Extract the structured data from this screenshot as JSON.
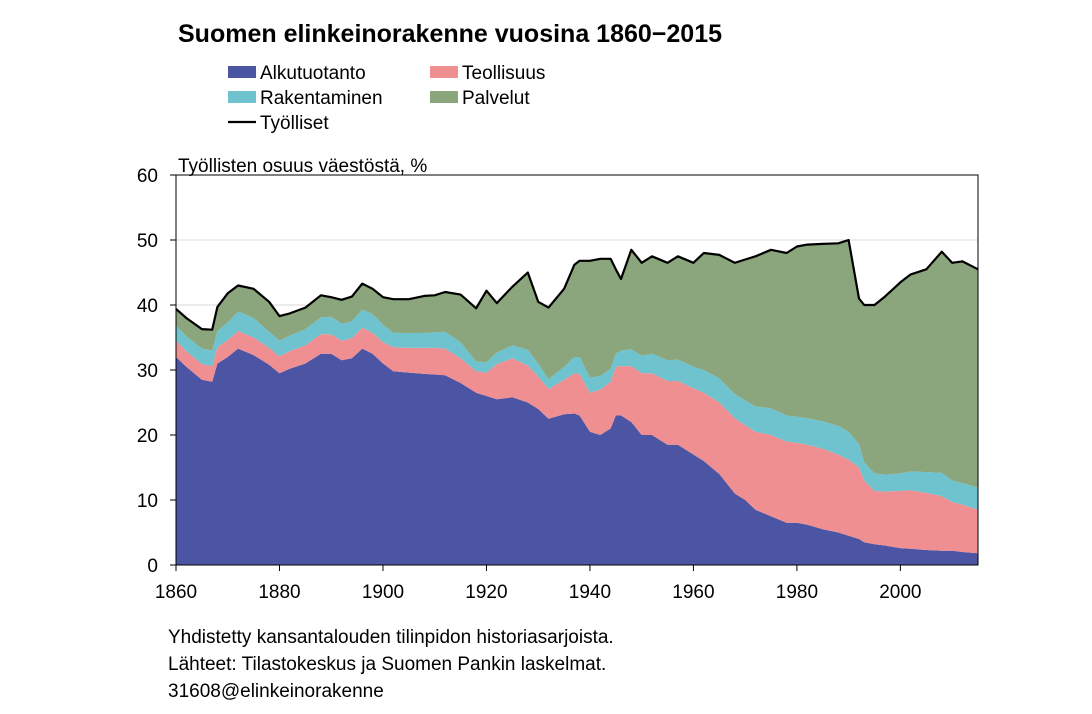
{
  "chart_data": {
    "type": "area",
    "title": "Suomen elinkeinorakenne vuosina 1860−2015",
    "ylabel": "Työllisten osuus väestöstä, %",
    "xlabel": "",
    "xlim": [
      1860,
      2015
    ],
    "ylim": [
      0,
      60
    ],
    "x_ticks": [
      1860,
      1880,
      1900,
      1920,
      1940,
      1960,
      1980,
      2000
    ],
    "y_ticks": [
      0,
      10,
      20,
      30,
      40,
      50,
      60
    ],
    "grid": true,
    "legend_position": "top",
    "x": [
      1860,
      1862,
      1865,
      1867,
      1868,
      1870,
      1872,
      1875,
      1878,
      1880,
      1882,
      1885,
      1888,
      1890,
      1892,
      1894,
      1896,
      1898,
      1900,
      1902,
      1905,
      1908,
      1910,
      1912,
      1915,
      1918,
      1920,
      1922,
      1925,
      1928,
      1930,
      1932,
      1935,
      1937,
      1938,
      1940,
      1942,
      1944,
      1945,
      1946,
      1948,
      1950,
      1952,
      1955,
      1957,
      1960,
      1962,
      1965,
      1968,
      1970,
      1972,
      1975,
      1978,
      1980,
      1982,
      1985,
      1988,
      1990,
      1992,
      1993,
      1995,
      1997,
      2000,
      2002,
      2005,
      2008,
      2010,
      2012,
      2015
    ],
    "series": [
      {
        "name": "Alkutuotanto",
        "color": "#4b55a3",
        "values": [
          32.0,
          30.5,
          28.5,
          28.2,
          31.0,
          32.0,
          33.3,
          32.3,
          30.8,
          29.5,
          30.2,
          31.0,
          32.5,
          32.5,
          31.5,
          31.8,
          33.3,
          32.5,
          31.0,
          29.8,
          29.6,
          29.4,
          29.3,
          29.2,
          28.0,
          26.5,
          26.0,
          25.5,
          25.8,
          25.0,
          24.0,
          22.5,
          23.2,
          23.3,
          23.0,
          20.5,
          20.0,
          21.0,
          23.0,
          23.0,
          22.0,
          20.0,
          20.0,
          18.5,
          18.5,
          17.0,
          16.0,
          14.0,
          11.0,
          10.0,
          8.5,
          7.5,
          6.5,
          6.5,
          6.2,
          5.5,
          5.0,
          4.5,
          4.0,
          3.5,
          3.2,
          3.0,
          2.6,
          2.5,
          2.3,
          2.2,
          2.2,
          2.0,
          1.8
        ]
      },
      {
        "name": "Teollisuus",
        "color": "#f08f92",
        "values": [
          2.5,
          2.4,
          2.4,
          2.4,
          2.5,
          2.6,
          2.7,
          2.7,
          2.6,
          2.6,
          2.7,
          2.8,
          3.0,
          3.0,
          3.0,
          3.1,
          3.2,
          3.2,
          3.3,
          3.7,
          3.8,
          4.0,
          4.1,
          4.1,
          3.8,
          3.3,
          3.6,
          5.4,
          6.0,
          5.7,
          5.0,
          4.6,
          5.3,
          6.2,
          6.4,
          6.0,
          7.0,
          7.2,
          7.5,
          7.6,
          8.6,
          9.5,
          9.5,
          9.8,
          9.8,
          10.2,
          10.5,
          11.0,
          11.6,
          11.5,
          12.0,
          12.5,
          12.5,
          12.3,
          12.3,
          12.4,
          12.0,
          11.7,
          11.0,
          9.5,
          8.2,
          8.3,
          8.8,
          9.0,
          8.8,
          8.4,
          7.5,
          7.3,
          6.7
        ]
      },
      {
        "name": "Rakentaminen",
        "color": "#6ec3cf",
        "values": [
          2.3,
          2.3,
          2.4,
          2.4,
          2.5,
          2.7,
          3.0,
          3.0,
          2.5,
          2.4,
          2.4,
          2.5,
          2.6,
          2.7,
          2.6,
          2.6,
          2.8,
          2.9,
          2.7,
          2.2,
          2.3,
          2.3,
          2.4,
          2.6,
          2.5,
          1.5,
          1.6,
          1.8,
          2.0,
          2.4,
          2.0,
          1.5,
          2.0,
          2.5,
          2.6,
          2.3,
          2.1,
          2.0,
          2.0,
          2.4,
          2.6,
          2.7,
          3.0,
          3.2,
          3.3,
          3.3,
          3.5,
          3.7,
          3.7,
          3.8,
          3.9,
          4.1,
          4.0,
          4.0,
          4.1,
          4.2,
          4.4,
          4.3,
          3.6,
          2.8,
          2.7,
          2.6,
          2.7,
          2.9,
          3.2,
          3.6,
          3.3,
          3.3,
          3.4
        ]
      },
      {
        "name": "Palvelut",
        "color": "#8ba57c",
        "values": [
          2.6,
          2.8,
          3.0,
          3.2,
          3.7,
          4.5,
          4.0,
          4.5,
          4.6,
          3.8,
          3.4,
          3.3,
          3.4,
          3.0,
          3.7,
          3.8,
          4.0,
          3.9,
          4.2,
          5.2,
          5.2,
          5.7,
          5.7,
          6.1,
          7.3,
          8.2,
          11.0,
          7.6,
          9.0,
          11.9,
          9.5,
          11.0,
          12.0,
          14.2,
          14.8,
          18.0,
          18.0,
          16.9,
          13.0,
          11.0,
          15.3,
          14.3,
          15.0,
          15.0,
          15.9,
          16.0,
          18.0,
          19.0,
          20.2,
          21.7,
          23.1,
          24.4,
          25.0,
          26.2,
          26.7,
          27.3,
          28.1,
          29.5,
          22.4,
          24.2,
          25.8,
          27.4,
          29.4,
          30.3,
          31.2,
          34.0,
          33.5,
          34.1,
          33.6
        ]
      },
      {
        "name": "Työlliset",
        "color": "#000000",
        "line": true,
        "values": [
          39.4,
          38.0,
          36.3,
          36.2,
          39.7,
          41.8,
          43.0,
          42.5,
          40.5,
          38.3,
          38.7,
          39.6,
          41.5,
          41.2,
          40.8,
          41.3,
          43.3,
          42.5,
          41.2,
          40.9,
          40.9,
          41.4,
          41.5,
          42.0,
          41.6,
          39.5,
          42.2,
          40.3,
          42.8,
          45.0,
          40.5,
          39.6,
          42.5,
          46.2,
          46.8,
          46.8,
          47.1,
          47.1,
          45.5,
          44.0,
          48.5,
          46.5,
          47.5,
          46.5,
          47.5,
          46.5,
          48.0,
          47.7,
          46.5,
          47.0,
          47.5,
          48.5,
          48.0,
          49.0,
          49.3,
          49.4,
          49.5,
          50.0,
          41.0,
          40.0,
          40.0,
          41.3,
          43.5,
          44.7,
          45.5,
          48.2,
          46.5,
          46.7,
          45.5
        ]
      }
    ]
  },
  "footer": {
    "line1": "Yhdistetty kansantalouden tilinpidon historiasarjoista.",
    "line2": "Lähteet: Tilastokeskus ja Suomen Pankin laskelmat.",
    "line3": "31608@elinkeinorakenne"
  }
}
